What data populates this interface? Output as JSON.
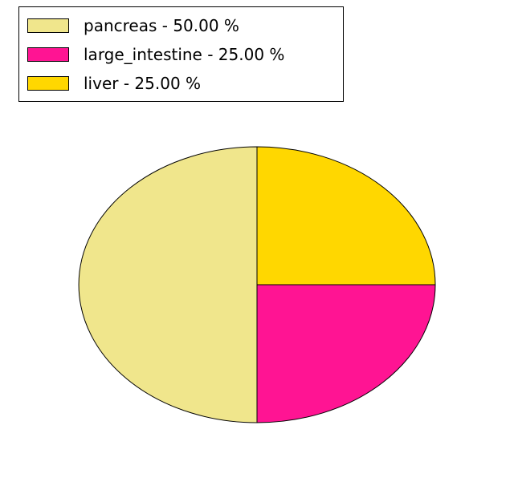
{
  "page": {
    "background": "#ffffff"
  },
  "legend": {
    "position": "upper-left",
    "border_color": "#000000",
    "items": [
      {
        "label": "pancreas - 50.00 %",
        "color": "#f0e68c"
      },
      {
        "label": "large_intestine - 25.00 %",
        "color": "#ff1493"
      },
      {
        "label": "liver - 25.00 %",
        "color": "#ffd700"
      }
    ]
  },
  "chart_data": {
    "type": "pie",
    "title": "",
    "categories": [
      "pancreas",
      "large_intestine",
      "liver"
    ],
    "values": [
      50.0,
      25.0,
      25.0
    ],
    "unit": "%",
    "colors": [
      "#f0e68c",
      "#ff1493",
      "#ffd700"
    ],
    "edge_color": "#000000",
    "start_angle": 90,
    "direction": "counterclockwise",
    "legend_position": "upper left",
    "shape": "ellipse"
  }
}
